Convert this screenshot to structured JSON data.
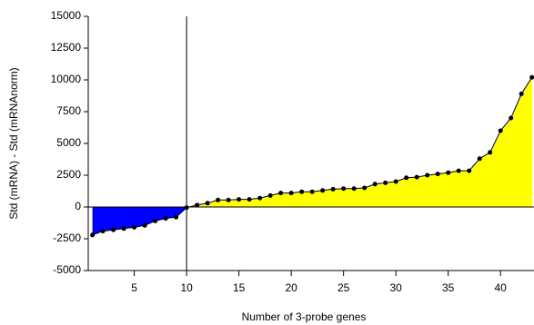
{
  "chart_data": {
    "type": "area",
    "x_label": "Number of 3-probe genes",
    "y_label": "Std (mRNA) - Std (mRNAnorm)",
    "x": [
      1,
      2,
      3,
      4,
      5,
      6,
      7,
      8,
      9,
      10,
      11,
      12,
      13,
      14,
      15,
      16,
      17,
      18,
      19,
      20,
      21,
      22,
      23,
      24,
      25,
      26,
      27,
      28,
      29,
      30,
      31,
      32,
      33,
      34,
      35,
      36,
      37,
      38,
      39,
      40,
      41,
      42,
      43
    ],
    "values": [
      -2200,
      -1900,
      -1800,
      -1700,
      -1600,
      -1450,
      -1100,
      -900,
      -800,
      -50,
      150,
      300,
      550,
      550,
      600,
      600,
      700,
      900,
      1100,
      1100,
      1200,
      1200,
      1300,
      1400,
      1450,
      1450,
      1500,
      1800,
      1900,
      2000,
      2300,
      2350,
      2500,
      2600,
      2700,
      2850,
      2850,
      3800,
      4300,
      6000,
      7000,
      8900,
      10200
    ],
    "positive_color": "#ffff00",
    "negative_color": "#0000ff",
    "line_color": "#000000",
    "xlim": [
      0.6,
      43.2
    ],
    "xticks": [
      5,
      10,
      15,
      20,
      25,
      30,
      35,
      40
    ],
    "ylim": [
      -5000,
      15000
    ],
    "yticks": [
      -5000,
      -2500,
      0,
      2500,
      5000,
      7500,
      10000,
      12500,
      15000
    ],
    "vline": 10
  }
}
